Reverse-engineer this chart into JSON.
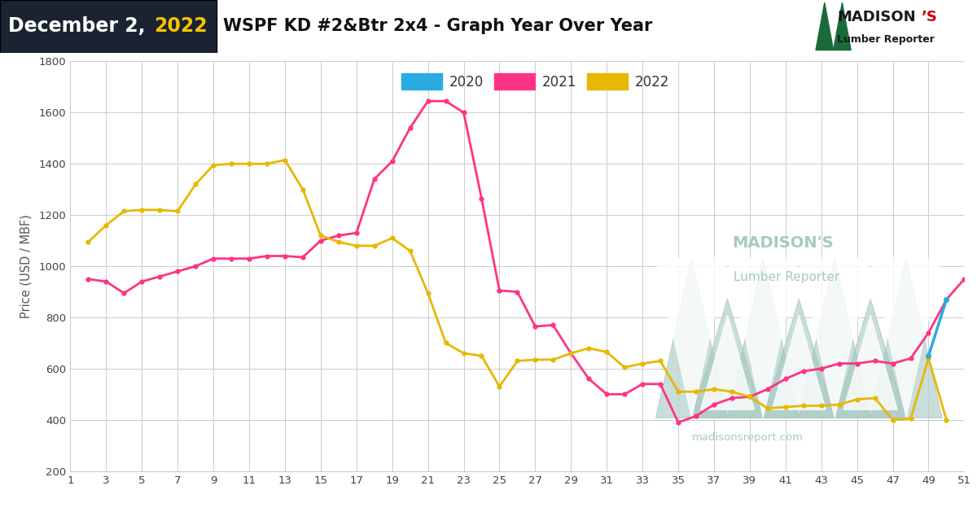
{
  "title": "WSPF KD #2&Btr 2x4 - Graph Year Over Year",
  "date_day": "December 2,",
  "date_year": " 2022",
  "ylabel": "Price (USD / MBF)",
  "background_color": "#ffffff",
  "header_bg": "#1a2332",
  "grid_color": "#cccccc",
  "x_ticks": [
    1,
    3,
    5,
    7,
    9,
    11,
    13,
    15,
    17,
    19,
    21,
    23,
    25,
    27,
    29,
    31,
    33,
    35,
    37,
    39,
    41,
    43,
    45,
    47,
    49,
    51
  ],
  "ylim": [
    200,
    1800
  ],
  "y_ticks": [
    200,
    400,
    600,
    800,
    1000,
    1200,
    1400,
    1600,
    1800
  ],
  "series_2021": {
    "x": [
      2,
      3,
      4,
      5,
      6,
      7,
      8,
      9,
      10,
      11,
      12,
      13,
      14,
      15,
      16,
      17,
      18,
      19,
      20,
      21,
      22,
      23,
      24,
      25,
      26,
      27,
      28,
      29,
      30,
      31,
      32,
      33,
      34,
      35,
      36,
      37,
      38,
      39,
      40,
      41,
      42,
      43,
      44,
      45,
      46,
      47,
      48,
      49,
      50,
      51
    ],
    "y": [
      950,
      940,
      895,
      940,
      960,
      980,
      1000,
      1030,
      1030,
      1030,
      1040,
      1040,
      1035,
      1100,
      1120,
      1130,
      1340,
      1410,
      1540,
      1645,
      1645,
      1600,
      1265,
      905,
      900,
      765,
      770,
      660,
      560,
      500,
      500,
      540,
      540,
      390,
      415,
      460,
      485,
      490,
      520,
      560,
      590,
      600,
      620,
      620,
      630,
      620,
      640,
      740,
      870,
      950
    ],
    "color": "#ff3385",
    "label": "2021"
  },
  "series_2022": {
    "x": [
      2,
      3,
      4,
      5,
      6,
      7,
      8,
      9,
      10,
      11,
      12,
      13,
      14,
      15,
      16,
      17,
      18,
      19,
      20,
      21,
      22,
      23,
      24,
      25,
      26,
      27,
      28,
      29,
      30,
      31,
      32,
      33,
      34,
      35,
      36,
      37,
      38,
      39,
      40,
      41,
      42,
      43,
      44,
      45,
      46,
      47,
      48,
      49,
      50
    ],
    "y": [
      1095,
      1160,
      1215,
      1220,
      1220,
      1215,
      1320,
      1395,
      1400,
      1400,
      1400,
      1415,
      1300,
      1120,
      1095,
      1080,
      1080,
      1110,
      1060,
      895,
      700,
      660,
      650,
      530,
      630,
      635,
      635,
      660,
      680,
      665,
      605,
      620,
      630,
      510,
      510,
      520,
      510,
      490,
      445,
      450,
      455,
      455,
      460,
      480,
      485,
      400,
      405,
      640,
      400
    ],
    "color": "#e6b800",
    "label": "2022"
  },
  "series_2020": {
    "x": [
      49,
      50
    ],
    "y": [
      650,
      870
    ],
    "color": "#29abe2",
    "label": "2020"
  },
  "watermark_color": "#9dc4bc",
  "watermark_text1": "MADISON'S",
  "watermark_text2": "Lumber Reporter",
  "watermark_text3": "madisonsreport.com",
  "logo_green": "#1a6b3c",
  "logo_black": "#1a1a1a"
}
